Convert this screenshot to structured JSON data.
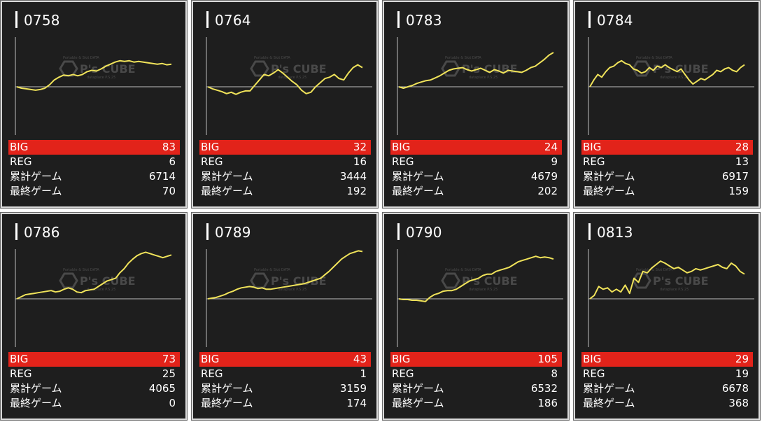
{
  "labels": {
    "big": "BIG",
    "reg": "REG",
    "total": "累計ゲーム",
    "last": "最終ゲーム"
  },
  "watermark": {
    "brand": "P's CUBE",
    "caption_top": "Portable & Slot DATA",
    "caption_bottom": "dataplace P.S.25"
  },
  "colors": {
    "card_bg": "#1e1e1e",
    "line": "#f0e35a",
    "big_bar": "#e2231a",
    "axis": "#bdbdbd"
  },
  "machines": [
    {
      "id": "0758",
      "big": "83",
      "reg": "6",
      "total": "6714",
      "last": "70"
    },
    {
      "id": "0764",
      "big": "32",
      "reg": "16",
      "total": "3444",
      "last": "192"
    },
    {
      "id": "0783",
      "big": "24",
      "reg": "9",
      "total": "4679",
      "last": "202"
    },
    {
      "id": "0784",
      "big": "28",
      "reg": "13",
      "total": "6917",
      "last": "159"
    },
    {
      "id": "0786",
      "big": "73",
      "reg": "25",
      "total": "4065",
      "last": "0"
    },
    {
      "id": "0789",
      "big": "43",
      "reg": "1",
      "total": "3159",
      "last": "174"
    },
    {
      "id": "0790",
      "big": "105",
      "reg": "8",
      "total": "6532",
      "last": "186"
    },
    {
      "id": "0813",
      "big": "29",
      "reg": "19",
      "total": "6678",
      "last": "368"
    }
  ],
  "chart_data": [
    {
      "type": "line",
      "series": [
        {
          "values": [
            0,
            -2,
            -3,
            -4,
            -5,
            -4,
            -2,
            3,
            10,
            14,
            17,
            16,
            18,
            16,
            18,
            22,
            24,
            23,
            26,
            30,
            33,
            36,
            38,
            37,
            38,
            36,
            37,
            36,
            35,
            34,
            33,
            34,
            32,
            33
          ]
        }
      ]
    },
    {
      "type": "line",
      "series": [
        {
          "values": [
            0,
            -3,
            -5,
            -7,
            -10,
            -8,
            -11,
            -8,
            -6,
            -6,
            2,
            10,
            18,
            16,
            20,
            25,
            20,
            14,
            8,
            3,
            -5,
            -10,
            -8,
            0,
            6,
            12,
            14,
            18,
            12,
            10,
            20,
            28,
            32,
            28
          ]
        }
      ]
    },
    {
      "type": "line",
      "series": [
        {
          "values": [
            0,
            -2,
            0,
            2,
            5,
            7,
            9,
            10,
            13,
            16,
            20,
            24,
            26,
            27,
            28,
            25,
            23,
            25,
            27,
            24,
            21,
            25,
            23,
            20,
            24,
            23,
            22,
            21,
            24,
            28,
            30,
            35,
            40,
            46,
            50
          ]
        }
      ]
    },
    {
      "type": "line",
      "series": [
        {
          "values": [
            0,
            10,
            18,
            14,
            22,
            28,
            30,
            35,
            38,
            34,
            32,
            26,
            24,
            20,
            22,
            28,
            24,
            30,
            28,
            32,
            28,
            25,
            22,
            26,
            18,
            10,
            4,
            8,
            12,
            10,
            14,
            18,
            24,
            22,
            26,
            28,
            24,
            22,
            28,
            32
          ]
        }
      ]
    },
    {
      "type": "line",
      "series": [
        {
          "values": [
            0,
            3,
            6,
            7,
            8,
            9,
            10,
            11,
            12,
            10,
            11,
            14,
            16,
            14,
            10,
            9,
            12,
            13,
            14,
            18,
            22,
            26,
            28,
            30,
            38,
            44,
            52,
            58,
            63,
            66,
            68,
            66,
            64,
            62,
            60,
            62,
            64
          ]
        }
      ]
    },
    {
      "type": "line",
      "series": [
        {
          "values": [
            0,
            1,
            2,
            4,
            6,
            9,
            11,
            14,
            16,
            17,
            18,
            17,
            15,
            16,
            14,
            14,
            15,
            16,
            17,
            18,
            19,
            20,
            21,
            22,
            24,
            26,
            28,
            30,
            35,
            40,
            46,
            52,
            58,
            62,
            66,
            68,
            70,
            69
          ]
        }
      ]
    },
    {
      "type": "line",
      "series": [
        {
          "values": [
            0,
            -1,
            -1,
            -2,
            -2,
            -3,
            -4,
            2,
            6,
            8,
            11,
            12,
            12,
            14,
            18,
            22,
            26,
            28,
            30,
            34,
            36,
            36,
            40,
            42,
            44,
            46,
            50,
            54,
            56,
            58,
            60,
            62,
            60,
            61,
            60,
            58
          ]
        }
      ]
    },
    {
      "type": "line",
      "series": [
        {
          "values": [
            0,
            5,
            18,
            14,
            16,
            10,
            14,
            10,
            20,
            8,
            30,
            24,
            40,
            38,
            45,
            50,
            55,
            52,
            48,
            44,
            46,
            42,
            38,
            40,
            44,
            42,
            44,
            46,
            48,
            50,
            46,
            44,
            52,
            48,
            40,
            36
          ]
        }
      ]
    }
  ]
}
